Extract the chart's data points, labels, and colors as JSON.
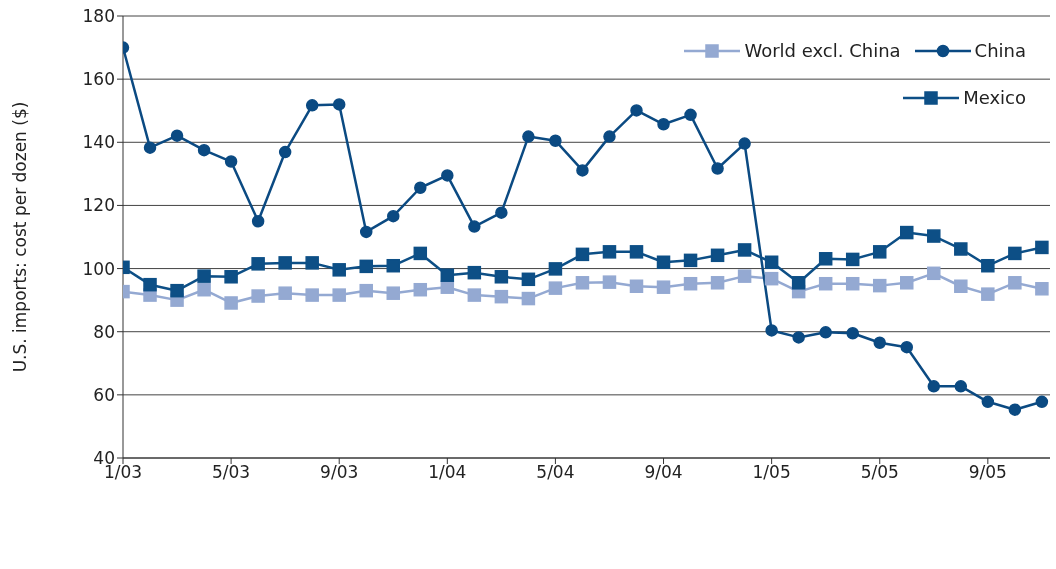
{
  "chart_data": {
    "type": "line",
    "ylabel": "U.S. imports: cost per dozen ($)",
    "x": [
      "2003-01",
      "2003-02",
      "2003-03",
      "2003-04",
      "2003-05",
      "2003-06",
      "2003-07",
      "2003-08",
      "2003-09",
      "2003-10",
      "2003-11",
      "2003-12",
      "2004-01",
      "2004-02",
      "2004-03",
      "2004-04",
      "2004-05",
      "2004-06",
      "2004-07",
      "2004-08",
      "2004-09",
      "2004-10",
      "2004-11",
      "2004-12",
      "2005-01",
      "2005-02",
      "2005-03",
      "2005-04",
      "2005-05",
      "2005-06",
      "2005-07",
      "2005-08",
      "2005-09",
      "2005-10",
      "2005-11"
    ],
    "series": [
      {
        "name": "World excl. China",
        "color": "#94a9d2",
        "marker": "square",
        "values": [
          92.7,
          91.6,
          90,
          93.3,
          89.1,
          91.3,
          92.2,
          91.6,
          91.6,
          93,
          92.2,
          93.3,
          94.1,
          91.6,
          91.1,
          90.5,
          93.8,
          95.5,
          95.7,
          94.4,
          94.1,
          95.2,
          95.5,
          97.6,
          96.8,
          92.7,
          95.2,
          95.2,
          94.6,
          95.5,
          98.5,
          94.4,
          91.9,
          95.5,
          93.6
        ]
      },
      {
        "name": "China",
        "color": "#0b4a82",
        "marker": "circle",
        "values": [
          170,
          138.3,
          142.1,
          137.5,
          133.9,
          115,
          136.9,
          151.7,
          152,
          111.6,
          116.6,
          125.6,
          129.5,
          113.3,
          117.7,
          141.8,
          140.5,
          131.1,
          141.8,
          150.1,
          145.7,
          148.7,
          131.7,
          139.6,
          80.4,
          78.2,
          79.8,
          79.5,
          76.5,
          75.1,
          62.7,
          62.7,
          57.8,
          55.3,
          57.8
        ]
      },
      {
        "name": "Mexico",
        "color": "#0d4f86",
        "marker": "square",
        "values": [
          100.4,
          94.9,
          93,
          97.6,
          97.4,
          101.5,
          101.8,
          101.8,
          99.6,
          100.7,
          100.9,
          104.8,
          97.9,
          98.7,
          97.4,
          96.6,
          99.9,
          104.5,
          105.3,
          105.3,
          102,
          102.6,
          104.2,
          105.9,
          102,
          95.5,
          103.1,
          102.9,
          105.3,
          111.4,
          110.3,
          106.2,
          100.9,
          104.8,
          106.7
        ]
      }
    ],
    "xlim": [
      "2003-01",
      "2005-11-10"
    ],
    "xticks": [
      {
        "value": "2003-01",
        "label": "1/03"
      },
      {
        "value": "2003-05",
        "label": "5/03"
      },
      {
        "value": "2003-09",
        "label": "9/03"
      },
      {
        "value": "2004-01",
        "label": "1/04"
      },
      {
        "value": "2004-05",
        "label": "5/04"
      },
      {
        "value": "2004-09",
        "label": "9/04"
      },
      {
        "value": "2005-01",
        "label": "1/05"
      },
      {
        "value": "2005-05",
        "label": "5/05"
      },
      {
        "value": "2005-09",
        "label": "9/05"
      }
    ],
    "ylim": [
      40,
      180
    ],
    "yticks": [
      40,
      60,
      80,
      100,
      120,
      140,
      160,
      180
    ],
    "grid": "y",
    "legend": "top right",
    "line_style": "solid"
  }
}
